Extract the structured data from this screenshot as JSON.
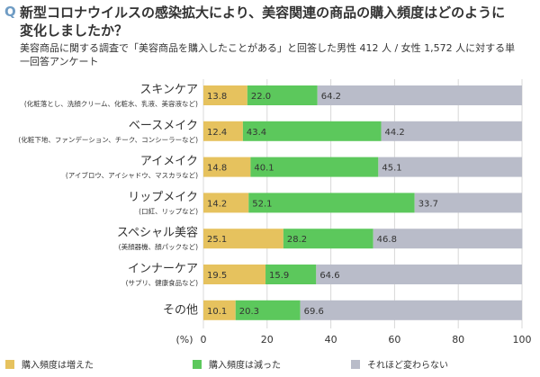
{
  "chart_data": {
    "type": "stacked_bar_horizontal",
    "title_marker": "Q",
    "title": "新型コロナウイルスの感染拡大により、美容関連の商品の購入頻度はどのように変化しましたか？",
    "subtitle": "美容商品に関する調査で「美容商品を購入したことがある」と回答した男性 412 人 / 女性 1,572 人に対する単一回答アンケート",
    "categories": [
      "スキンケア",
      "ベースメイク",
      "アイメイク",
      "リップメイク",
      "スペシャル美容",
      "インナーケア",
      "その他"
    ],
    "category_notes": [
      "(化粧落とし、洗顔クリーム、化粧水、乳液、美容液など)",
      "(化粧下地、ファンデーション、チーク、コンシーラーなど)",
      "(アイブロウ、アイシャドウ、マスカラなど)",
      "(口紅、リップなど)",
      "(美顔器機、顔パックなど)",
      "(サプリ、健康食品など)",
      null
    ],
    "series": [
      {
        "name": "購入頻度は増えた",
        "color": "#e6c25e",
        "values": [
          13.8,
          12.4,
          14.8,
          14.2,
          25.1,
          19.5,
          10.1
        ],
        "value_labels": [
          "13.8",
          "12.4",
          "14.8",
          "14.2",
          "25.1",
          "19.5",
          "10.1"
        ]
      },
      {
        "name": "購入頻度は減った",
        "color": "#5cc85c",
        "values": [
          22,
          43.4,
          40.1,
          52.1,
          28.2,
          15.9,
          20.3
        ],
        "value_labels": [
          "22.0",
          "43.4",
          "40.1",
          "52.1",
          "28.2",
          "15.9",
          "20.3"
        ]
      },
      {
        "name": "それほど変わらない",
        "color": "#b9bcc9",
        "values": [
          64.2,
          44.2,
          45.1,
          33.7,
          46.8,
          64.6,
          69.6
        ],
        "value_labels": [
          "64.2",
          "44.2",
          "45.1",
          "33.7",
          "46.8",
          "64.6",
          "69.6"
        ]
      }
    ],
    "xlabel": "(%)",
    "xlim": [
      0,
      100
    ],
    "xticks": [
      0,
      20,
      40,
      60,
      80,
      100
    ],
    "grid": true
  }
}
